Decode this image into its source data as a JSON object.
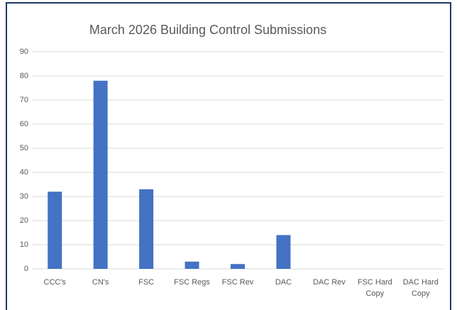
{
  "chart_data": {
    "type": "bar",
    "title": "March 2026 Building Control Submissions",
    "categories": [
      "CCC's",
      "CN's",
      "FSC",
      "FSC Regs",
      "FSC Rev",
      "DAC",
      "DAC Rev",
      "FSC Hard Copy",
      "DAC Hard Copy"
    ],
    "values": [
      32,
      78,
      33,
      3,
      2,
      14,
      0,
      0,
      0
    ],
    "color": "#4472c4",
    "ylim": [
      0,
      90
    ],
    "yticks": [
      0,
      10,
      20,
      30,
      40,
      50,
      60,
      70,
      80,
      90
    ],
    "grid": true
  }
}
